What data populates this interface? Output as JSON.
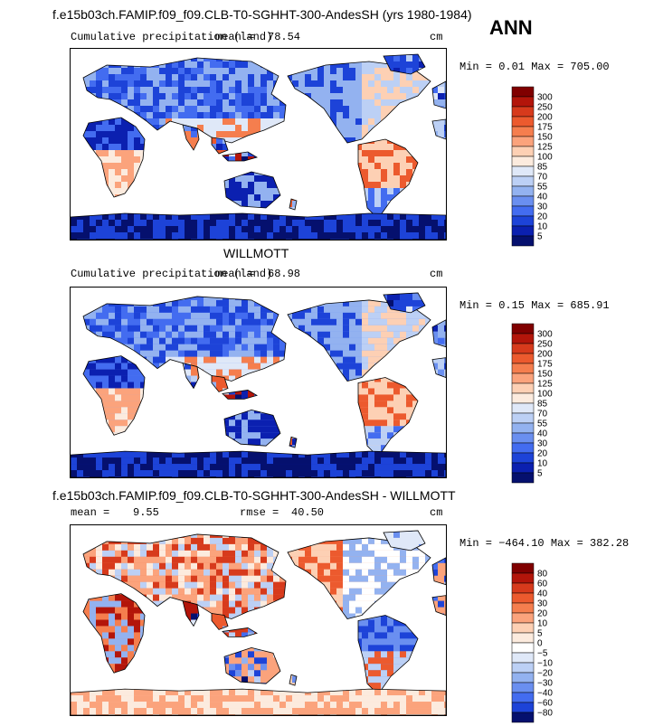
{
  "header": {
    "title": "f.e15b03ch.FAMIP.f09_f09.CLB-T0-SGHHT-300-AndesSH (yrs 1980-1984)",
    "season": "ANN"
  },
  "panels": [
    {
      "id": "model",
      "subtitle": "",
      "field_label": "Cumulative precipitation (land)",
      "mean_label": "mean =",
      "mean_value": "78.54",
      "rmse_label": "",
      "rmse_value": "",
      "units": "cm",
      "minmax": "Min =    0.01  Max =  705.00",
      "colorbar_levels": [
        "300",
        "250",
        "200",
        "175",
        "150",
        "125",
        "100",
        "85",
        "70",
        "55",
        "40",
        "30",
        "20",
        "10",
        "5"
      ]
    },
    {
      "id": "obs",
      "subtitle": "WILLMOTT",
      "field_label": "Cumulative precipitation (land)",
      "mean_label": "mean =",
      "mean_value": "68.98",
      "rmse_label": "",
      "rmse_value": "",
      "units": "cm",
      "minmax": "Min =    0.15  Max =  685.91",
      "colorbar_levels": [
        "300",
        "250",
        "200",
        "175",
        "150",
        "125",
        "100",
        "85",
        "70",
        "55",
        "40",
        "30",
        "20",
        "10",
        "5"
      ]
    },
    {
      "id": "diff",
      "subtitle": "f.e15b03ch.FAMIP.f09_f09.CLB-T0-SGHHT-300-AndesSH - WILLMOTT",
      "field_label": "",
      "mean_label": "mean =",
      "mean_value": "9.55",
      "rmse_label": "rmse =",
      "rmse_value": "40.50",
      "units": "cm",
      "minmax": "Min = −464.10  Max =  382.28",
      "colorbar_levels": [
        "80",
        "60",
        "40",
        "30",
        "20",
        "10",
        "5",
        "0",
        "−5",
        "−10",
        "−20",
        "−30",
        "−40",
        "−60",
        "−80"
      ]
    }
  ],
  "colors": {
    "abs_scale": [
      "#800000",
      "#b3150a",
      "#d73a1c",
      "#ec5a2e",
      "#f57e4e",
      "#fba37c",
      "#fdd0b4",
      "#fcebde",
      "#dfe8f8",
      "#bcd0f5",
      "#93b2f0",
      "#6a8ff0",
      "#436cf0",
      "#1d43d8",
      "#0b20b0",
      "#05106e"
    ],
    "diff_scale": [
      "#800000",
      "#b3150a",
      "#d73a1c",
      "#ec5a2e",
      "#f57e4e",
      "#fba37c",
      "#fdd0b4",
      "#fcebde",
      "#ffffff",
      "#dfe8f8",
      "#bcd0f5",
      "#93b2f0",
      "#6a8ff0",
      "#436cf0",
      "#1d43d8",
      "#05106e"
    ]
  },
  "chart_data": [
    {
      "type": "heatmap",
      "title": "Cumulative precipitation (land)",
      "units": "cm",
      "mean": 78.54,
      "min": 0.01,
      "max": 705.0,
      "contour_levels": [
        5,
        10,
        20,
        30,
        40,
        55,
        70,
        85,
        100,
        125,
        150,
        175,
        200,
        250,
        300
      ]
    },
    {
      "type": "heatmap",
      "title": "Cumulative precipitation (land)",
      "subtitle": "WILLMOTT",
      "units": "cm",
      "mean": 68.98,
      "min": 0.15,
      "max": 685.91,
      "contour_levels": [
        5,
        10,
        20,
        30,
        40,
        55,
        70,
        85,
        100,
        125,
        150,
        175,
        200,
        250,
        300
      ]
    },
    {
      "type": "heatmap",
      "units": "cm",
      "mean": 9.55,
      "rmse": 40.5,
      "min": -464.1,
      "max": 382.28,
      "contour_levels": [
        -80,
        -60,
        -40,
        -30,
        -20,
        -10,
        -5,
        0,
        5,
        10,
        20,
        30,
        40,
        60,
        80
      ]
    }
  ]
}
